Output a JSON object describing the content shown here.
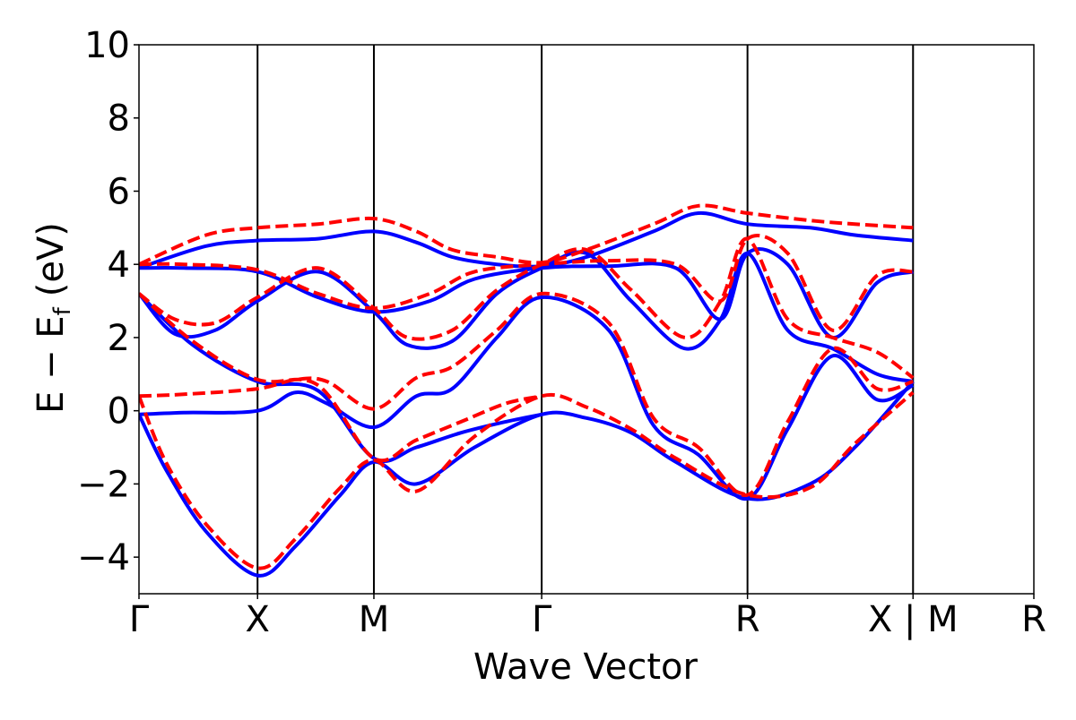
{
  "chart_data": {
    "type": "line",
    "title": "",
    "xlabel": "Wave Vector",
    "ylabel": "E − E_f (eV)",
    "ylabel_parts": {
      "main": "E − E",
      "sub": "f",
      "unit": "(eV)"
    },
    "ylim": [
      -5,
      10
    ],
    "yticks": [
      -4,
      -2,
      0,
      2,
      4,
      6,
      8,
      10
    ],
    "ytick_labels": [
      "−4",
      "−2",
      "0",
      "2",
      "4",
      "6",
      "8",
      "10"
    ],
    "grid": false,
    "legend": "none",
    "colors": {
      "series_a": "#0000ff",
      "series_b": "#ff0000",
      "axis": "#000000"
    },
    "segments": [
      {
        "x": [
          0.0,
          2.0
        ],
        "high_symmetry_labels": [
          "Γ",
          "X",
          "M",
          "Γ",
          "R",
          "X"
        ]
      },
      {
        "x": [
          2.0,
          2.3
        ],
        "high_symmetry_labels": [
          "M",
          "R"
        ]
      }
    ],
    "xticks": [
      {
        "x": 0.0,
        "label": "Γ"
      },
      {
        "x": 0.265,
        "label": "X"
      },
      {
        "x": 0.525,
        "label": "M"
      },
      {
        "x": 0.9,
        "label": "Γ"
      },
      {
        "x": 1.36,
        "label": "R"
      },
      {
        "x": 1.73,
        "label": "X | M"
      },
      {
        "x": 2.0,
        "label": "R"
      }
    ],
    "x_range": [
      0,
      2.0
    ],
    "series": [
      {
        "style": "solid",
        "color": "#0000ff",
        "bands": [
          {
            "x": [
              0.0,
              0.06,
              0.15,
              0.265,
              0.35,
              0.45,
              0.525,
              0.62,
              0.75,
              0.9,
              1.0,
              1.1,
              1.2,
              1.36,
              1.5,
              1.6,
              1.73
            ],
            "y": [
              -0.1,
              -1.6,
              -3.3,
              -4.5,
              -3.7,
              -2.3,
              -1.4,
              -2.0,
              -1.0,
              -0.1,
              -0.2,
              -0.6,
              -1.4,
              -2.4,
              -2.0,
              -1.0,
              0.8
            ]
          },
          {
            "x": [
              0.0,
              0.1,
              0.265,
              0.35,
              0.42,
              0.525,
              0.62,
              0.7,
              0.8,
              0.9,
              1.05,
              1.15,
              1.25,
              1.36,
              1.45,
              1.55,
              1.65,
              1.73
            ],
            "y": [
              -0.1,
              -0.05,
              0.0,
              0.5,
              0.2,
              -0.45,
              0.4,
              0.6,
              2.0,
              3.1,
              2.2,
              -0.4,
              -1.2,
              -2.4,
              -0.5,
              1.5,
              0.3,
              0.7
            ]
          },
          {
            "x": [
              0.0,
              0.12,
              0.265,
              0.4,
              0.525,
              0.62,
              0.72,
              0.82,
              0.9
            ],
            "y": [
              3.2,
              1.8,
              0.8,
              0.55,
              -1.3,
              -1.0,
              -0.6,
              -0.3,
              -0.1
            ]
          },
          {
            "x": [
              0.0,
              0.08,
              0.17,
              0.265,
              0.4,
              0.525,
              0.6,
              0.7,
              0.8,
              0.9,
              1.0,
              1.1,
              1.22,
              1.3,
              1.36,
              1.45,
              1.55,
              1.65,
              1.73
            ],
            "y": [
              3.2,
              2.1,
              2.2,
              3.0,
              3.8,
              2.7,
              1.8,
              1.9,
              3.2,
              3.9,
              4.3,
              3.0,
              1.7,
              2.5,
              4.3,
              2.2,
              1.7,
              1.0,
              0.8
            ]
          },
          {
            "x": [
              0.0,
              0.1,
              0.265,
              0.4,
              0.525,
              0.65,
              0.75,
              0.9,
              1.05,
              1.2,
              1.3,
              1.36,
              1.45,
              1.55,
              1.65,
              1.73
            ],
            "y": [
              3.9,
              3.9,
              3.8,
              3.1,
              2.7,
              3.0,
              3.6,
              3.9,
              3.95,
              3.9,
              2.5,
              4.3,
              4.0,
              2.0,
              3.5,
              3.8
            ]
          },
          {
            "x": [
              0.0,
              0.15,
              0.265,
              0.4,
              0.525,
              0.62,
              0.7,
              0.8,
              0.9,
              1.0,
              1.15,
              1.25,
              1.36,
              1.5,
              1.6,
              1.73
            ],
            "y": [
              3.9,
              4.5,
              4.65,
              4.7,
              4.9,
              4.6,
              4.2,
              4.0,
              3.95,
              4.2,
              4.9,
              5.4,
              5.1,
              5.0,
              4.8,
              4.65
            ]
          }
        ]
      },
      {
        "style": "dashed",
        "color": "#ff0000",
        "bands": [
          {
            "x": [
              0.0,
              0.06,
              0.15,
              0.265,
              0.35,
              0.45,
              0.525,
              0.62,
              0.75,
              0.9,
              1.0,
              1.1,
              1.2,
              1.36,
              1.5,
              1.6,
              1.73
            ],
            "y": [
              0.4,
              -1.4,
              -3.1,
              -4.3,
              -3.5,
              -2.1,
              -1.35,
              -2.2,
              -0.7,
              0.4,
              0.1,
              -0.5,
              -1.3,
              -2.3,
              -2.1,
              -0.9,
              0.5
            ]
          },
          {
            "x": [
              0.0,
              0.1,
              0.265,
              0.35,
              0.42,
              0.525,
              0.62,
              0.7,
              0.8,
              0.9,
              1.05,
              1.15,
              1.25,
              1.36,
              1.45,
              1.55,
              1.65,
              1.73
            ],
            "y": [
              0.4,
              0.45,
              0.6,
              0.85,
              0.8,
              0.05,
              0.9,
              1.2,
              2.2,
              3.2,
              2.4,
              -0.2,
              -1.0,
              -2.3,
              -0.3,
              1.7,
              0.6,
              0.8
            ]
          },
          {
            "x": [
              0.0,
              0.12,
              0.265,
              0.4,
              0.525,
              0.62,
              0.72,
              0.82,
              0.9
            ],
            "y": [
              3.2,
              1.9,
              0.85,
              0.7,
              -1.3,
              -0.8,
              -0.3,
              0.2,
              0.4
            ]
          },
          {
            "x": [
              0.0,
              0.08,
              0.17,
              0.265,
              0.4,
              0.525,
              0.6,
              0.7,
              0.8,
              0.9,
              1.0,
              1.1,
              1.22,
              1.3,
              1.36,
              1.45,
              1.55,
              1.65,
              1.73
            ],
            "y": [
              3.2,
              2.5,
              2.4,
              3.1,
              3.9,
              2.8,
              2.0,
              2.2,
              3.3,
              4.0,
              4.4,
              3.3,
              2.0,
              3.0,
              4.7,
              2.5,
              2.0,
              1.6,
              0.9
            ]
          },
          {
            "x": [
              0.0,
              0.1,
              0.265,
              0.4,
              0.525,
              0.65,
              0.75,
              0.9,
              1.05,
              1.2,
              1.3,
              1.36,
              1.45,
              1.55,
              1.65,
              1.73
            ],
            "y": [
              4.0,
              4.0,
              3.85,
              3.2,
              2.8,
              3.2,
              3.8,
              4.0,
              4.1,
              4.0,
              3.0,
              4.7,
              4.3,
              2.2,
              3.7,
              3.8
            ]
          },
          {
            "x": [
              0.0,
              0.15,
              0.265,
              0.4,
              0.525,
              0.62,
              0.7,
              0.8,
              0.9,
              1.0,
              1.15,
              1.25,
              1.36,
              1.5,
              1.6,
              1.73
            ],
            "y": [
              4.0,
              4.8,
              5.0,
              5.1,
              5.25,
              4.9,
              4.4,
              4.2,
              4.05,
              4.4,
              5.1,
              5.6,
              5.4,
              5.2,
              5.1,
              5.0
            ]
          }
        ]
      }
    ]
  }
}
